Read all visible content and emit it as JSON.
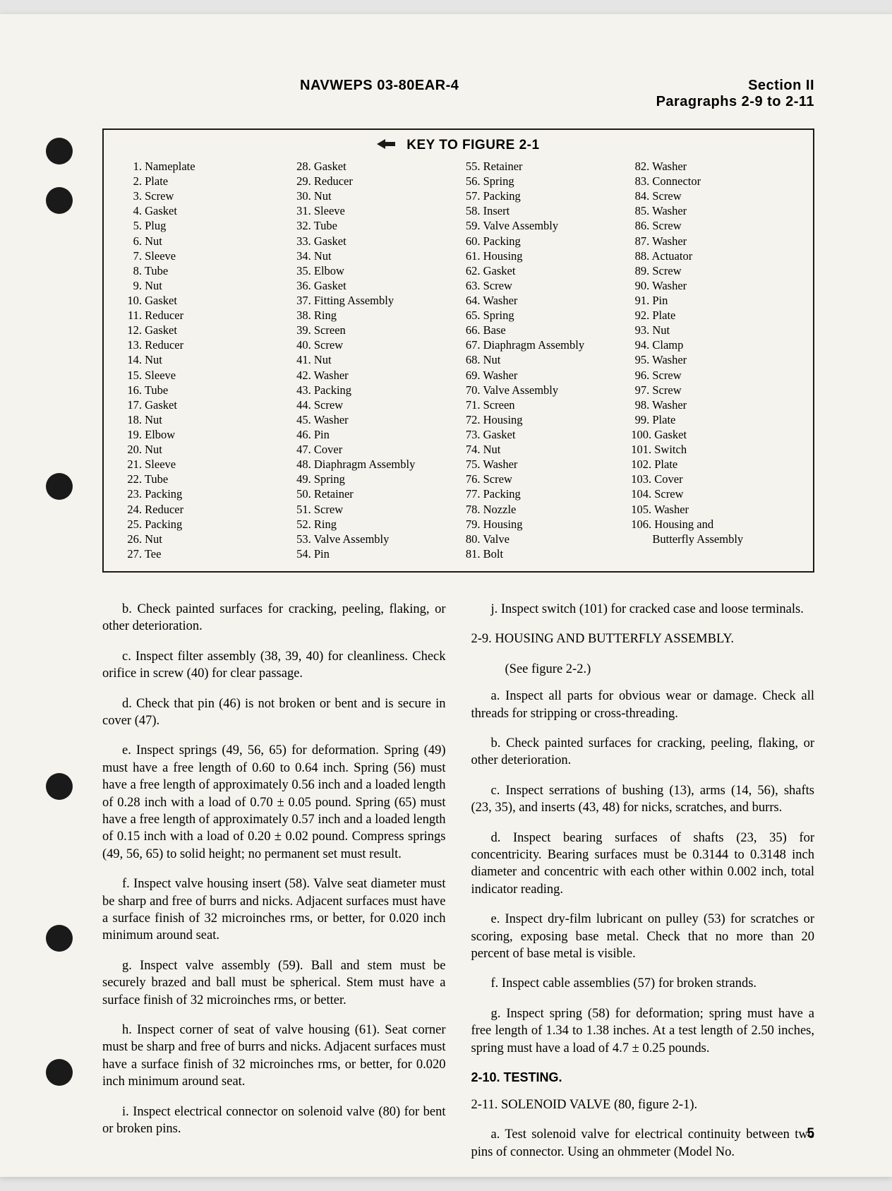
{
  "header": {
    "doc_id": "NAVWEPS 03-80EAR-4",
    "section": "Section II",
    "paragraphs": "Paragraphs 2-9 to 2-11"
  },
  "key_figure": {
    "title": "KEY TO FIGURE 2-1",
    "items": [
      {
        "n": "1.",
        "t": "Nameplate"
      },
      {
        "n": "2.",
        "t": "Plate"
      },
      {
        "n": "3.",
        "t": "Screw"
      },
      {
        "n": "4.",
        "t": "Gasket"
      },
      {
        "n": "5.",
        "t": "Plug"
      },
      {
        "n": "6.",
        "t": "Nut"
      },
      {
        "n": "7.",
        "t": "Sleeve"
      },
      {
        "n": "8.",
        "t": "Tube"
      },
      {
        "n": "9.",
        "t": "Nut"
      },
      {
        "n": "10.",
        "t": "Gasket"
      },
      {
        "n": "11.",
        "t": "Reducer"
      },
      {
        "n": "12.",
        "t": "Gasket"
      },
      {
        "n": "13.",
        "t": "Reducer"
      },
      {
        "n": "14.",
        "t": "Nut"
      },
      {
        "n": "15.",
        "t": "Sleeve"
      },
      {
        "n": "16.",
        "t": "Tube"
      },
      {
        "n": "17.",
        "t": "Gasket"
      },
      {
        "n": "18.",
        "t": "Nut"
      },
      {
        "n": "19.",
        "t": "Elbow"
      },
      {
        "n": "20.",
        "t": "Nut"
      },
      {
        "n": "21.",
        "t": "Sleeve"
      },
      {
        "n": "22.",
        "t": "Tube"
      },
      {
        "n": "23.",
        "t": "Packing"
      },
      {
        "n": "24.",
        "t": "Reducer"
      },
      {
        "n": "25.",
        "t": "Packing"
      },
      {
        "n": "26.",
        "t": "Nut"
      },
      {
        "n": "27.",
        "t": "Tee"
      },
      {
        "n": "28.",
        "t": "Gasket"
      },
      {
        "n": "29.",
        "t": "Reducer"
      },
      {
        "n": "30.",
        "t": "Nut"
      },
      {
        "n": "31.",
        "t": "Sleeve"
      },
      {
        "n": "32.",
        "t": "Tube"
      },
      {
        "n": "33.",
        "t": "Gasket"
      },
      {
        "n": "34.",
        "t": "Nut"
      },
      {
        "n": "35.",
        "t": "Elbow"
      },
      {
        "n": "36.",
        "t": "Gasket"
      },
      {
        "n": "37.",
        "t": "Fitting Assembly"
      },
      {
        "n": "38.",
        "t": "Ring"
      },
      {
        "n": "39.",
        "t": "Screen"
      },
      {
        "n": "40.",
        "t": "Screw"
      },
      {
        "n": "41.",
        "t": "Nut"
      },
      {
        "n": "42.",
        "t": "Washer"
      },
      {
        "n": "43.",
        "t": "Packing"
      },
      {
        "n": "44.",
        "t": "Screw"
      },
      {
        "n": "45.",
        "t": "Washer"
      },
      {
        "n": "46.",
        "t": "Pin"
      },
      {
        "n": "47.",
        "t": "Cover"
      },
      {
        "n": "48.",
        "t": "Diaphragm Assembly"
      },
      {
        "n": "49.",
        "t": "Spring"
      },
      {
        "n": "50.",
        "t": "Retainer"
      },
      {
        "n": "51.",
        "t": "Screw"
      },
      {
        "n": "52.",
        "t": "Ring"
      },
      {
        "n": "53.",
        "t": "Valve Assembly"
      },
      {
        "n": "54.",
        "t": "Pin"
      },
      {
        "n": "55.",
        "t": "Retainer"
      },
      {
        "n": "56.",
        "t": "Spring"
      },
      {
        "n": "57.",
        "t": "Packing"
      },
      {
        "n": "58.",
        "t": "Insert"
      },
      {
        "n": "59.",
        "t": "Valve Assembly"
      },
      {
        "n": "60.",
        "t": "Packing"
      },
      {
        "n": "61.",
        "t": "Housing"
      },
      {
        "n": "62.",
        "t": "Gasket"
      },
      {
        "n": "63.",
        "t": "Screw"
      },
      {
        "n": "64.",
        "t": "Washer"
      },
      {
        "n": "65.",
        "t": "Spring"
      },
      {
        "n": "66.",
        "t": "Base"
      },
      {
        "n": "67.",
        "t": "Diaphragm Assembly"
      },
      {
        "n": "68.",
        "t": "Nut"
      },
      {
        "n": "69.",
        "t": "Washer"
      },
      {
        "n": "70.",
        "t": "Valve Assembly"
      },
      {
        "n": "71.",
        "t": "Screen"
      },
      {
        "n": "72.",
        "t": "Housing"
      },
      {
        "n": "73.",
        "t": "Gasket"
      },
      {
        "n": "74.",
        "t": "Nut"
      },
      {
        "n": "75.",
        "t": "Washer"
      },
      {
        "n": "76.",
        "t": "Screw"
      },
      {
        "n": "77.",
        "t": "Packing"
      },
      {
        "n": "78.",
        "t": "Nozzle"
      },
      {
        "n": "79.",
        "t": "Housing"
      },
      {
        "n": "80.",
        "t": "Valve"
      },
      {
        "n": "81.",
        "t": "Bolt"
      },
      {
        "n": "82.",
        "t": "Washer"
      },
      {
        "n": "83.",
        "t": "Connector"
      },
      {
        "n": "84.",
        "t": "Screw"
      },
      {
        "n": "85.",
        "t": "Washer"
      },
      {
        "n": "86.",
        "t": "Screw"
      },
      {
        "n": "87.",
        "t": "Washer"
      },
      {
        "n": "88.",
        "t": "Actuator"
      },
      {
        "n": "89.",
        "t": "Screw"
      },
      {
        "n": "90.",
        "t": "Washer"
      },
      {
        "n": "91.",
        "t": "Pin"
      },
      {
        "n": "92.",
        "t": "Plate"
      },
      {
        "n": "93.",
        "t": "Nut"
      },
      {
        "n": "94.",
        "t": "Clamp"
      },
      {
        "n": "95.",
        "t": "Washer"
      },
      {
        "n": "96.",
        "t": "Screw"
      },
      {
        "n": "97.",
        "t": "Screw"
      },
      {
        "n": "98.",
        "t": "Washer"
      },
      {
        "n": "99.",
        "t": "Plate"
      },
      {
        "n": "100.",
        "t": "Gasket"
      },
      {
        "n": "101.",
        "t": "Switch"
      },
      {
        "n": "102.",
        "t": "Plate"
      },
      {
        "n": "103.",
        "t": "Cover"
      },
      {
        "n": "104.",
        "t": "Screw"
      },
      {
        "n": "105.",
        "t": "Washer"
      },
      {
        "n": "106.",
        "t": "Housing and"
      },
      {
        "n": "",
        "t": "Butterfly Assembly"
      }
    ]
  },
  "left_col": {
    "p_b": "b. Check painted surfaces for cracking, peeling, flaking, or other deterioration.",
    "p_c": "c. Inspect filter assembly (38, 39, 40) for cleanliness. Check orifice in screw (40) for clear passage.",
    "p_d": "d. Check that pin (46) is not broken or bent and is secure in cover (47).",
    "p_e": "e. Inspect springs (49, 56, 65) for deformation. Spring (49) must have a free length of 0.60 to 0.64 inch. Spring (56) must have a free length of approximately 0.56 inch and a loaded length of 0.28 inch with a load of 0.70 ± 0.05 pound. Spring (65) must have a free length of approximately 0.57 inch and a loaded length of 0.15 inch with a load of 0.20 ± 0.02 pound. Compress springs (49, 56, 65) to solid height; no permanent set must result.",
    "p_f": "f. Inspect valve housing insert (58). Valve seat diameter must be sharp and free of burrs and nicks. Adjacent surfaces must have a surface finish of 32 microinches rms, or better, for 0.020 inch minimum around seat.",
    "p_g": "g. Inspect valve assembly (59). Ball and stem must be securely brazed and ball must be spherical. Stem must have a surface finish of 32 microinches rms, or better.",
    "p_h": "h. Inspect corner of seat of valve housing (61). Seat corner must be sharp and free of burrs and nicks. Adjacent surfaces must have a surface finish of 32 microinches rms, or better, for 0.020 inch minimum around seat.",
    "p_i": "i. Inspect electrical connector on solenoid valve (80) for bent or broken pins."
  },
  "right_col": {
    "p_j": "j. Inspect switch (101) for cracked case and loose terminals.",
    "sec_2_9": "2-9. HOUSING AND BUTTERFLY ASSEMBLY.",
    "sec_2_9_ref": "(See figure 2-2.)",
    "p_a": "a. Inspect all parts for obvious wear or damage. Check all threads for stripping or cross-threading.",
    "p_b": "b. Check painted surfaces for cracking, peeling, flaking, or other deterioration.",
    "p_c": "c. Inspect serrations of bushing (13), arms (14, 56), shafts (23, 35), and inserts (43, 48) for nicks, scratches, and burrs.",
    "p_d": "d. Inspect bearing surfaces of shafts (23, 35) for concentricity. Bearing surfaces must be 0.3144 to 0.3148 inch diameter and concentric with each other within 0.002 inch, total indicator reading.",
    "p_e": "e. Inspect dry-film lubricant on pulley (53) for scratches or scoring, exposing base metal. Check that no more than 20 percent of base metal is visible.",
    "p_f": "f. Inspect cable assemblies (57) for broken strands.",
    "p_g": "g. Inspect spring (58) for deformation; spring must have a free length of 1.34 to 1.38 inches. At a test length of 2.50 inches, spring must have a load of 4.7 ± 0.25 pounds.",
    "sec_2_10": "2-10. TESTING.",
    "sec_2_11": "2-11. SOLENOID VALVE (80, figure 2-1).",
    "p_2_11_a": "a. Test solenoid valve for electrical continuity between two pins of connector. Using an ohmmeter (Model No."
  },
  "page_number": "5",
  "punch_holes": [
    175,
    245,
    650,
    1075,
    1290,
    1480
  ],
  "styles": {
    "page_bg": "#f5f3ed",
    "text_color": "#1a1a1a",
    "body_font_size": 18.5,
    "key_font_size": 16.5,
    "header_font_size": 20
  }
}
